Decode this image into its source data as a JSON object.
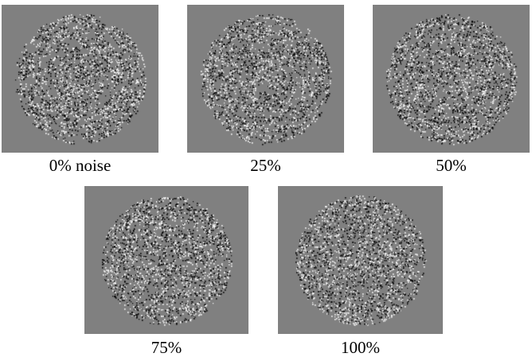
{
  "background_color": "#808080",
  "dot_colors": {
    "light": "#ffffff",
    "dark": "#000000"
  },
  "panels": [
    {
      "label": "0% noise",
      "noise": 0.0
    },
    {
      "label": "25%",
      "noise": 0.25
    },
    {
      "label": "50%",
      "noise": 0.5
    },
    {
      "label": "75%",
      "noise": 0.75
    },
    {
      "label": "100%",
      "noise": 1.0
    }
  ]
}
